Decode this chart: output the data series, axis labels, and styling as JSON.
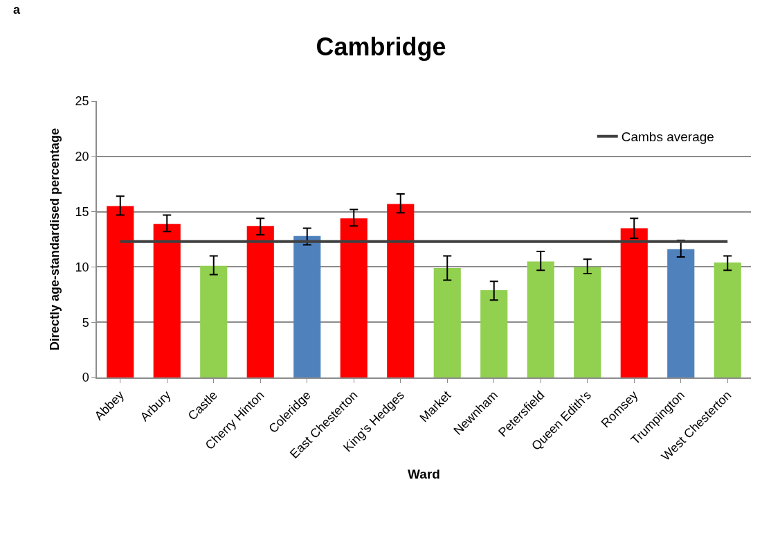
{
  "chart_data": {
    "type": "bar",
    "title": "Cambridge",
    "xlabel": "Ward",
    "ylabel": "Directly age-standardised percentage",
    "annotations": [
      "a"
    ],
    "categories": [
      "Abbey",
      "Arbury",
      "Castle",
      "Cherry Hinton",
      "Coleridge",
      "East Chesterton",
      "King's Hedges",
      "Market",
      "Newnham",
      "Petersfield",
      "Queen Edith's",
      "Romsey",
      "Trumpington",
      "West Chesterton"
    ],
    "series": [
      {
        "colors": [
          "#ff0000",
          "#ff0000",
          "#92d050",
          "#ff0000",
          "#4f81bd",
          "#ff0000",
          "#ff0000",
          "#92d050",
          "#92d050",
          "#92d050",
          "#92d050",
          "#ff0000",
          "#4f81bd",
          "#92d050"
        ],
        "values": [
          15.5,
          13.9,
          10.1,
          13.7,
          12.8,
          14.4,
          15.7,
          9.9,
          7.9,
          10.5,
          10.0,
          13.5,
          11.6,
          10.4
        ],
        "errors": [
          [
            14.7,
            16.4
          ],
          [
            13.2,
            14.7
          ],
          [
            9.3,
            11.0
          ],
          [
            12.9,
            14.4
          ],
          [
            12.0,
            13.5
          ],
          [
            13.7,
            15.2
          ],
          [
            14.9,
            16.6
          ],
          [
            8.8,
            11.0
          ],
          [
            7.0,
            8.7
          ],
          [
            9.7,
            11.4
          ],
          [
            9.4,
            10.7
          ],
          [
            12.6,
            14.4
          ],
          [
            10.9,
            12.4
          ],
          [
            9.7,
            11.0
          ]
        ]
      },
      {
        "type": "line",
        "name": "Cambs average",
        "color": "#404040",
        "values": [
          12.3,
          12.3,
          12.3,
          12.3,
          12.3,
          12.3,
          12.3,
          12.3,
          12.3,
          12.3,
          12.3,
          12.3,
          12.3,
          12.3
        ]
      }
    ],
    "ylim": [
      0,
      25
    ],
    "yticks": [
      0,
      5,
      10,
      15,
      20,
      25
    ],
    "grid": "y",
    "legend": "top right",
    "marker": "none",
    "line_style": "solid"
  }
}
